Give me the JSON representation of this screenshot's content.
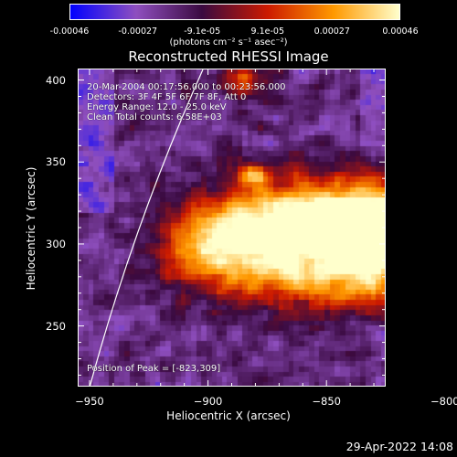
{
  "chart_data": {
    "type": "heatmap",
    "title": "Reconstructed RHESSI Image",
    "xlabel": "Heliocentric X (arcsec)",
    "ylabel": "Heliocentric Y (arcsec)",
    "xlim": [
      -955,
      -825
    ],
    "ylim": [
      213,
      407
    ],
    "xticks": [
      -950,
      -900,
      -850,
      -800
    ],
    "yticks": [
      250,
      300,
      350,
      400
    ],
    "colorbar": {
      "ticks": [
        "-0.00046",
        "-0.00027",
        "-9.1e-05",
        "9.1e-05",
        "0.00027",
        "0.00046"
      ],
      "tick_values": [
        -0.00046,
        -0.00027,
        -9.1e-05,
        9.1e-05,
        0.00027,
        0.00046
      ],
      "range": [
        -0.00046,
        0.00046
      ],
      "unit": "(photons cm⁻² s⁻¹ asec⁻²)",
      "colors": [
        "#0000ff",
        "#8f4fbf",
        "#3a0a40",
        "#cc1a00",
        "#ff9900",
        "#ffffcc"
      ]
    },
    "annotations": {
      "time": "20-Mar-2004 00:17:56.000 to 00:23:56.000",
      "detectors": "Detectors: 3F 4F 5F 6F 7F 8F, Att 0",
      "energy": "Energy Range: 12.0 - 25.0 keV",
      "clean": "Clean     Total counts: 6.58E+03",
      "peak": "Position of Peak = [-823,309]"
    },
    "peak": [
      -823,
      309
    ],
    "limb_x": [
      -950,
      -930,
      -910,
      -890,
      -870
    ]
  },
  "footer": {
    "timestamp": "29-Apr-2022 14:08"
  }
}
